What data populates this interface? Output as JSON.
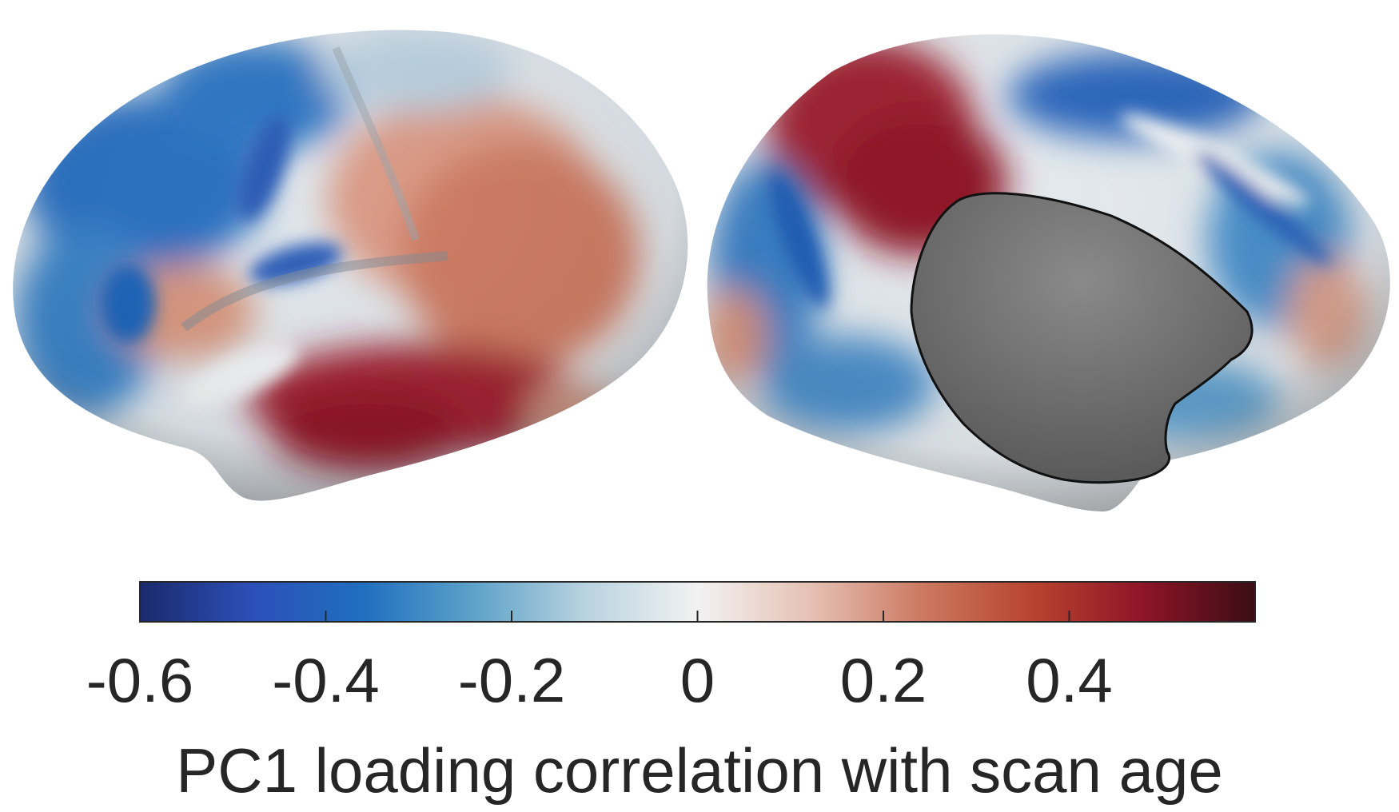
{
  "figure": {
    "views": [
      {
        "name": "lateral-left-hemisphere"
      },
      {
        "name": "medial-right-hemisphere",
        "has_masked_region": true
      }
    ],
    "colormap": {
      "name": "blue-white-red diverging",
      "stops": [
        "#1a2a6c",
        "#2c4fb8",
        "#1f6fc0",
        "#5ea2c9",
        "#b9d3df",
        "#f2f2f2",
        "#e6c2b5",
        "#cc7a62",
        "#b8442e",
        "#8e1428",
        "#3a0d14"
      ],
      "range": [
        -0.6,
        0.6
      ]
    },
    "colorbar": {
      "ticks": [
        "-0.6",
        "-0.4",
        "-0.2",
        "0",
        "0.2",
        "0.4"
      ],
      "tick_values": [
        -0.6,
        -0.4,
        -0.2,
        0,
        0.2,
        0.4
      ],
      "label": "PC1 loading correlation with scan age"
    },
    "mask_color": "#7a7a7a"
  }
}
